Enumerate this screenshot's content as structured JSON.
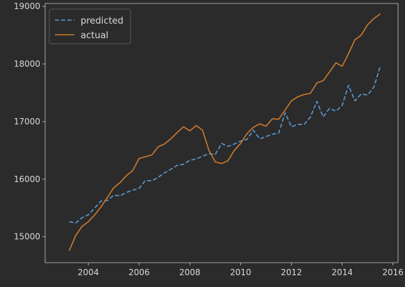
{
  "chart_data": {
    "type": "line",
    "title": "",
    "xlabel": "",
    "ylabel": "",
    "xlim": [
      2002.3,
      2016.2
    ],
    "ylim": [
      14550,
      19050
    ],
    "xticks": [
      2004,
      2006,
      2008,
      2010,
      2012,
      2014,
      2016
    ],
    "yticks": [
      15000,
      16000,
      17000,
      18000,
      19000
    ],
    "grid": false,
    "legend_position": "top-left",
    "series": [
      {
        "name": "predicted",
        "color": "#5b9bd5",
        "style": "dashed",
        "x": [
          2003.25,
          2003.5,
          2003.75,
          2004.0,
          2004.25,
          2004.5,
          2004.75,
          2005.0,
          2005.25,
          2005.5,
          2005.75,
          2006.0,
          2006.25,
          2006.5,
          2006.75,
          2007.0,
          2007.25,
          2007.5,
          2007.75,
          2008.0,
          2008.25,
          2008.5,
          2008.75,
          2009.0,
          2009.25,
          2009.5,
          2009.75,
          2010.0,
          2010.25,
          2010.5,
          2010.75,
          2011.0,
          2011.25,
          2011.5,
          2011.75,
          2012.0,
          2012.25,
          2012.5,
          2012.75,
          2013.0,
          2013.25,
          2013.5,
          2013.75,
          2014.0,
          2014.25,
          2014.5,
          2014.75,
          2015.0,
          2015.25,
          2015.5
        ],
        "values": [
          15260,
          15240,
          15330,
          15380,
          15500,
          15620,
          15630,
          15720,
          15710,
          15770,
          15810,
          15840,
          15980,
          15970,
          16030,
          16110,
          16170,
          16240,
          16260,
          16330,
          16350,
          16400,
          16440,
          16430,
          16620,
          16570,
          16610,
          16660,
          16690,
          16850,
          16700,
          16740,
          16780,
          16800,
          17150,
          16910,
          16950,
          16950,
          17080,
          17350,
          17080,
          17230,
          17180,
          17280,
          17630,
          17360,
          17480,
          17460,
          17600,
          17960
        ]
      },
      {
        "name": "actual",
        "color": "#d07a2c",
        "style": "solid",
        "x": [
          2003.25,
          2003.5,
          2003.75,
          2004.0,
          2004.25,
          2004.5,
          2004.75,
          2005.0,
          2005.25,
          2005.5,
          2005.75,
          2006.0,
          2006.25,
          2006.5,
          2006.75,
          2007.0,
          2007.25,
          2007.5,
          2007.75,
          2008.0,
          2008.25,
          2008.5,
          2008.75,
          2009.0,
          2009.25,
          2009.5,
          2009.75,
          2010.0,
          2010.25,
          2010.5,
          2010.75,
          2011.0,
          2011.25,
          2011.5,
          2011.75,
          2012.0,
          2012.25,
          2012.5,
          2012.75,
          2013.0,
          2013.25,
          2013.5,
          2013.75,
          2014.0,
          2014.25,
          2014.5,
          2014.75,
          2015.0,
          2015.25,
          2015.5
        ],
        "values": [
          14760,
          15020,
          15180,
          15260,
          15380,
          15520,
          15680,
          15850,
          15940,
          16060,
          16150,
          16360,
          16390,
          16420,
          16560,
          16610,
          16700,
          16810,
          16910,
          16840,
          16930,
          16850,
          16500,
          16300,
          16270,
          16320,
          16500,
          16620,
          16790,
          16900,
          16960,
          16920,
          17050,
          17040,
          17200,
          17360,
          17430,
          17470,
          17490,
          17670,
          17710,
          17860,
          18020,
          17960,
          18180,
          18420,
          18500,
          18680,
          18790,
          18870
        ]
      }
    ]
  }
}
